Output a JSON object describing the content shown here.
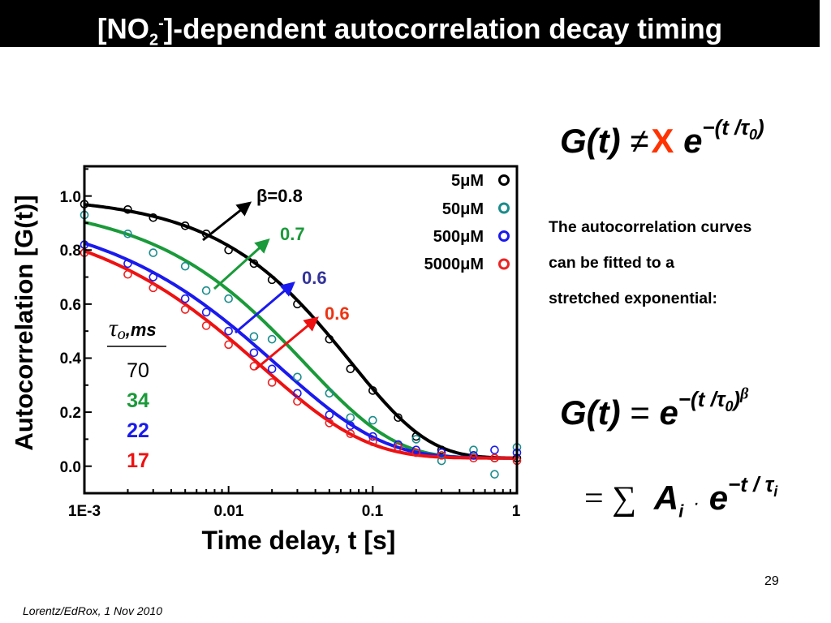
{
  "slide": {
    "title_pre": "[NO",
    "title_sub": "2",
    "title_sup": "-",
    "title_post": "]-dependent autocorrelation decay timing",
    "footer": "Lorentz/EdRox, 1 Nov 2010",
    "page_number": "29"
  },
  "equations": {
    "eq1": {
      "lhs": "G(t)",
      "op": "≠",
      "op_mark": "X",
      "op_color": "#ff3300",
      "base": "e",
      "exp": "−(t /τ",
      "exp_sub": "0",
      "exp_close": ")"
    },
    "eq2": {
      "lhs": "G(t)",
      "op": "=",
      "base": "e",
      "exp": "−(t /τ",
      "exp_sub": "0",
      "exp_close": ")",
      "power": "β"
    },
    "eq3": {
      "op": "= ∑",
      "term": "A",
      "term_sub": "i",
      "dot": "·",
      "base": "e",
      "exp": "−t / τ",
      "exp_sub": "i"
    }
  },
  "text": {
    "lines": [
      "The autocorrelation curves",
      "can be fitted to a",
      "stretched exponential:"
    ]
  },
  "chart_data": {
    "type": "scatter",
    "xlabel": "Time delay, t [s]",
    "ylabel": "Autocorrelation [G(t)]",
    "x_scale": "log",
    "xlim": [
      0.001,
      1
    ],
    "ylim": [
      -0.1,
      1.11
    ],
    "x_ticks": [
      "1E-3",
      "0.01",
      "0.1",
      "1"
    ],
    "x_tick_values": [
      0.001,
      0.01,
      0.1,
      1
    ],
    "y_ticks": [
      "0.0",
      "0.2",
      "0.4",
      "0.6",
      "0.8",
      "1.0"
    ],
    "y_tick_values": [
      0,
      0.2,
      0.4,
      0.6,
      0.8,
      1.0
    ],
    "grid": false,
    "legend_position": "top-right",
    "x": [
      0.001,
      0.002,
      0.003,
      0.005,
      0.007,
      0.01,
      0.015,
      0.02,
      0.03,
      0.05,
      0.07,
      0.1,
      0.15,
      0.2,
      0.3,
      0.5,
      0.7,
      1.0
    ],
    "series": [
      {
        "name": "5μM",
        "marker_color": "#000000",
        "fit_color": "#000000",
        "tau_ms": "70",
        "beta": "β=0.8",
        "tau_s": 0.07,
        "beta_value": 0.8,
        "amplitude": 0.97,
        "offset": 0.03,
        "values": [
          0.97,
          0.95,
          0.92,
          0.89,
          0.86,
          0.8,
          0.75,
          0.69,
          0.6,
          0.47,
          0.36,
          0.28,
          0.18,
          0.11,
          0.06,
          0.04,
          0.03,
          0.03
        ]
      },
      {
        "name": "50μM",
        "marker_color": "#1a8c8c",
        "fit_color": "#1a9a3a",
        "tau_ms": "34",
        "beta": "0.7",
        "tau_s": 0.034,
        "beta_value": 0.7,
        "amplitude": 0.95,
        "offset": 0.03,
        "values": [
          0.93,
          0.86,
          0.79,
          0.74,
          0.65,
          0.62,
          0.48,
          0.47,
          0.33,
          0.27,
          0.18,
          0.17,
          0.08,
          0.1,
          0.02,
          0.06,
          -0.03,
          0.07
        ]
      },
      {
        "name": "500μM",
        "marker_color": "#1a1aee",
        "fit_color": "#1a1aee",
        "tau_ms": "22",
        "beta": "0.6",
        "tau_s": 0.022,
        "beta_value": 0.6,
        "amplitude": 0.93,
        "offset": 0.03,
        "values": [
          0.82,
          0.75,
          0.7,
          0.62,
          0.57,
          0.5,
          0.42,
          0.36,
          0.27,
          0.19,
          0.15,
          0.11,
          0.08,
          0.06,
          0.05,
          0.04,
          0.06,
          0.05
        ]
      },
      {
        "name": "5000μM",
        "marker_color": "#ee2222",
        "fit_color": "#ee1111",
        "tau_ms": "17",
        "beta": "0.6",
        "tau_s": 0.017,
        "beta_value": 0.6,
        "amplitude": 0.92,
        "offset": 0.03,
        "values": [
          0.79,
          0.71,
          0.66,
          0.58,
          0.52,
          0.45,
          0.37,
          0.31,
          0.24,
          0.16,
          0.12,
          0.09,
          0.07,
          0.05,
          0.04,
          0.03,
          0.03,
          0.02
        ]
      }
    ],
    "annotations": {
      "tau_header": "τ",
      "tau_header_sub": "o",
      "tau_header_unit": ",ms"
    }
  }
}
